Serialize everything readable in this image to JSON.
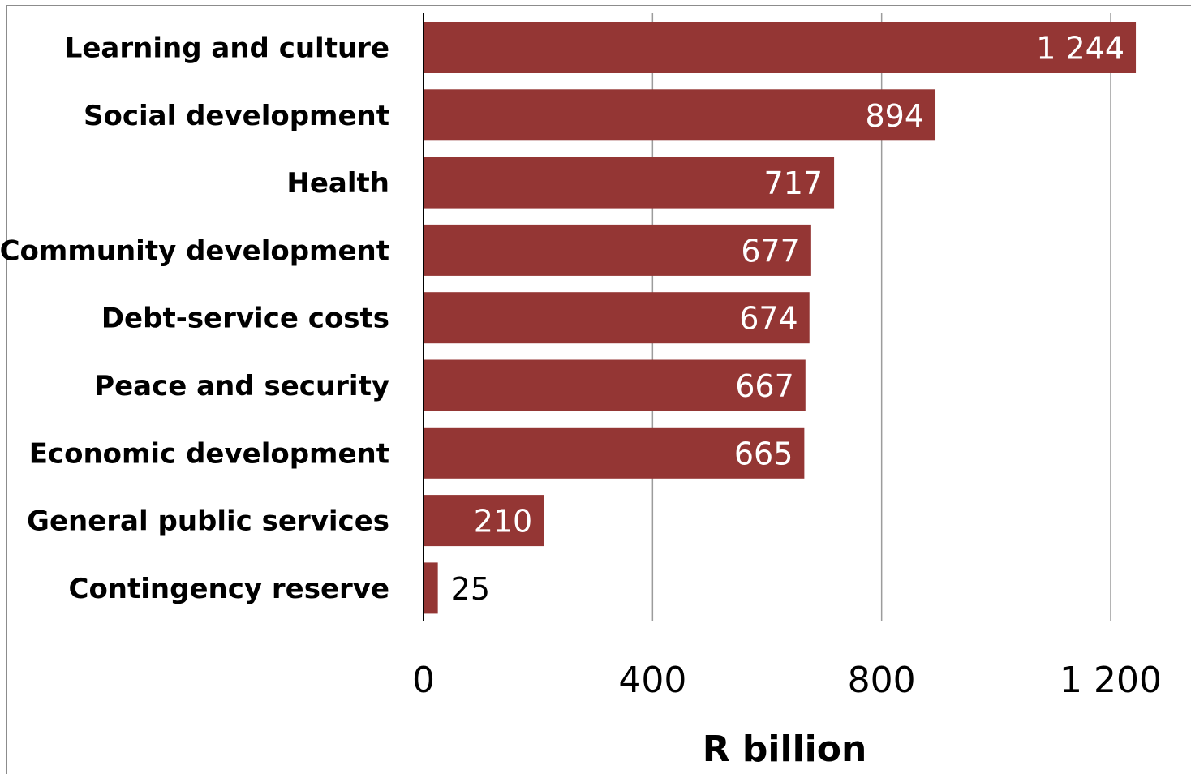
{
  "chart_data": {
    "type": "bar",
    "orientation": "horizontal",
    "categories": [
      "Learning and culture",
      "Social development",
      "Health",
      "Community development",
      "Debt-service costs",
      "Peace and security",
      "Economic development",
      "General public services",
      "Contingency reserve"
    ],
    "values": [
      1244,
      894,
      717,
      677,
      674,
      667,
      665,
      210,
      25
    ],
    "value_labels": [
      "1 244",
      "894",
      "717",
      "677",
      "674",
      "667",
      "665",
      "210",
      "25"
    ],
    "xlabel": "R billion",
    "ylabel": "",
    "xlim": [
      0,
      1200
    ],
    "xticks": [
      0,
      400,
      800,
      1200
    ],
    "xtick_labels": [
      "0",
      "400",
      "800",
      "1 200"
    ],
    "grid": "vertical",
    "legend": "none",
    "colors": {
      "bar": "#943634",
      "label_inside": "#ffffff",
      "label_outside": "#000000",
      "gridline": "#9c9c9c",
      "axis": "#000000"
    }
  }
}
